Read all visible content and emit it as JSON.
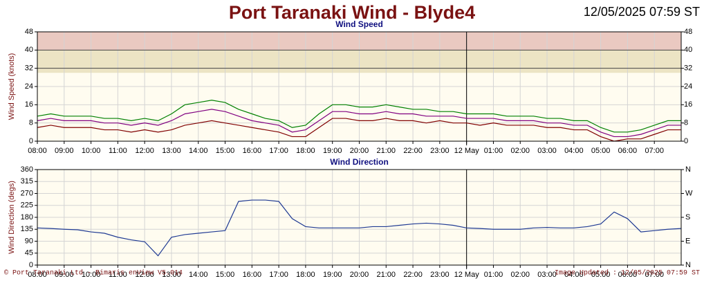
{
  "header": {
    "title": "Port Taranaki Wind - Blyde4",
    "timestamp": "12/05/2025 07:59 ST"
  },
  "footer": {
    "left": "© Port Taranaki Ltd - Bimaris enView V5.014",
    "right": "Image Updated : 12/05/2025 07:59 ST"
  },
  "chart_data": [
    {
      "type": "line",
      "title": "Wind Speed",
      "y_label": "Wind Speed (knots)",
      "x": [
        0,
        0.5,
        1,
        1.5,
        2,
        2.5,
        3,
        3.5,
        4,
        4.5,
        5,
        5.5,
        6,
        6.5,
        7,
        7.5,
        8,
        8.5,
        9,
        9.5,
        10,
        10.5,
        11,
        11.5,
        12,
        12.5,
        13,
        13.5,
        14,
        14.5,
        15,
        15.5,
        16,
        16.5,
        17,
        17.5,
        18,
        18.5,
        19,
        19.5,
        20,
        20.5,
        21,
        21.5,
        22,
        22.5,
        23,
        23.5,
        24
      ],
      "series": [
        {
          "color": "#008000",
          "values": [
            11,
            12,
            11,
            11,
            11,
            10,
            10,
            9,
            10,
            9,
            12,
            16,
            17,
            18,
            17,
            14,
            12,
            10,
            9,
            6,
            7,
            12,
            16,
            16,
            15,
            15,
            16,
            15,
            14,
            14,
            13,
            13,
            12,
            12,
            12,
            11,
            11,
            11,
            10,
            10,
            9,
            9,
            6,
            4,
            4,
            5,
            7,
            9,
            9
          ]
        },
        {
          "color": "#800080",
          "values": [
            9,
            10,
            9,
            9,
            9,
            8,
            8,
            7,
            8,
            7,
            9,
            12,
            13,
            14,
            13,
            11,
            9,
            8,
            7,
            4,
            5,
            9,
            13,
            13,
            12,
            12,
            13,
            12,
            12,
            11,
            11,
            11,
            10,
            10,
            10,
            9,
            9,
            9,
            8,
            8,
            7,
            7,
            4,
            2,
            2,
            3,
            5,
            7,
            7
          ]
        },
        {
          "color": "#800000",
          "values": [
            6,
            7,
            6,
            6,
            6,
            5,
            5,
            4,
            5,
            4,
            5,
            7,
            8,
            9,
            8,
            7,
            6,
            5,
            4,
            2,
            2,
            6,
            10,
            10,
            9,
            9,
            10,
            9,
            9,
            8,
            9,
            8,
            8,
            7,
            8,
            7,
            7,
            7,
            6,
            6,
            5,
            5,
            2,
            0,
            1,
            1,
            3,
            5,
            5
          ]
        }
      ],
      "bands": [
        {
          "from": 30,
          "to": 40,
          "color": "#ece4c4"
        },
        {
          "from": 40,
          "to": 48,
          "color": "#eac9c1"
        }
      ],
      "xlim": [
        0,
        24
      ],
      "xticks": [
        {
          "value": 0,
          "label": "08:00"
        },
        {
          "value": 1,
          "label": "09:00"
        },
        {
          "value": 2,
          "label": "10:00"
        },
        {
          "value": 3,
          "label": "11:00"
        },
        {
          "value": 4,
          "label": "12:00"
        },
        {
          "value": 5,
          "label": "13:00"
        },
        {
          "value": 6,
          "label": "14:00"
        },
        {
          "value": 7,
          "label": "15:00"
        },
        {
          "value": 8,
          "label": "16:00"
        },
        {
          "value": 9,
          "label": "17:00"
        },
        {
          "value": 10,
          "label": "18:00"
        },
        {
          "value": 11,
          "label": "19:00"
        },
        {
          "value": 12,
          "label": "20:00"
        },
        {
          "value": 13,
          "label": "21:00"
        },
        {
          "value": 14,
          "label": "22:00"
        },
        {
          "value": 15,
          "label": "23:00"
        },
        {
          "value": 16,
          "label": "12 May"
        },
        {
          "value": 17,
          "label": "01:00"
        },
        {
          "value": 18,
          "label": "02:00"
        },
        {
          "value": 19,
          "label": "03:00"
        },
        {
          "value": 20,
          "label": "04:00"
        },
        {
          "value": 21,
          "label": "05:00"
        },
        {
          "value": 22,
          "label": "06:00"
        },
        {
          "value": 23,
          "label": "07:00"
        }
      ],
      "day_divider": 16,
      "ylim": [
        0,
        48
      ],
      "yticks": [
        0,
        8,
        16,
        24,
        32,
        40,
        48
      ],
      "grid": true
    },
    {
      "type": "line",
      "title": "Wind Direction",
      "y_label": "Wind Direction (degs)",
      "x": [
        0,
        0.5,
        1,
        1.5,
        2,
        2.5,
        3,
        3.5,
        4,
        4.5,
        5,
        5.5,
        6,
        6.5,
        7,
        7.5,
        8,
        8.5,
        9,
        9.5,
        10,
        10.5,
        11,
        11.5,
        12,
        12.5,
        13,
        13.5,
        14,
        14.5,
        15,
        15.5,
        16,
        16.5,
        17,
        17.5,
        18,
        18.5,
        19,
        19.5,
        20,
        20.5,
        21,
        21.5,
        22,
        22.5,
        23,
        23.5,
        24
      ],
      "series": [
        {
          "color": "#1f3a93",
          "values": [
            140,
            138,
            135,
            133,
            125,
            120,
            105,
            95,
            88,
            35,
            105,
            115,
            120,
            125,
            130,
            240,
            245,
            245,
            240,
            175,
            145,
            140,
            140,
            140,
            140,
            145,
            145,
            150,
            155,
            158,
            155,
            150,
            140,
            138,
            135,
            135,
            135,
            140,
            142,
            140,
            140,
            145,
            155,
            200,
            175,
            125,
            130,
            135,
            138
          ]
        }
      ],
      "xlim": [
        0,
        24
      ],
      "xticks": [
        {
          "value": 0,
          "label": "08:00"
        },
        {
          "value": 1,
          "label": "09:00"
        },
        {
          "value": 2,
          "label": "10:00"
        },
        {
          "value": 3,
          "label": "11:00"
        },
        {
          "value": 4,
          "label": "12:00"
        },
        {
          "value": 5,
          "label": "13:00"
        },
        {
          "value": 6,
          "label": "14:00"
        },
        {
          "value": 7,
          "label": "15:00"
        },
        {
          "value": 8,
          "label": "16:00"
        },
        {
          "value": 9,
          "label": "17:00"
        },
        {
          "value": 10,
          "label": "18:00"
        },
        {
          "value": 11,
          "label": "19:00"
        },
        {
          "value": 12,
          "label": "20:00"
        },
        {
          "value": 13,
          "label": "21:00"
        },
        {
          "value": 14,
          "label": "22:00"
        },
        {
          "value": 15,
          "label": "23:00"
        },
        {
          "value": 16,
          "label": "12 May"
        },
        {
          "value": 17,
          "label": "01:00"
        },
        {
          "value": 18,
          "label": "02:00"
        },
        {
          "value": 19,
          "label": "03:00"
        },
        {
          "value": 20,
          "label": "04:00"
        },
        {
          "value": 21,
          "label": "05:00"
        },
        {
          "value": 22,
          "label": "06:00"
        },
        {
          "value": 23,
          "label": "07:00"
        }
      ],
      "day_divider": 16,
      "ylim": [
        0,
        360
      ],
      "yticks": [
        0,
        45,
        90,
        135,
        180,
        225,
        270,
        315,
        360
      ],
      "y2lim": [
        0,
        360
      ],
      "y2ticks": [
        {
          "value": 0,
          "label": "N"
        },
        {
          "value": 90,
          "label": "E"
        },
        {
          "value": 180,
          "label": "S"
        },
        {
          "value": 270,
          "label": "W"
        },
        {
          "value": 360,
          "label": "N"
        }
      ],
      "grid": true
    }
  ]
}
